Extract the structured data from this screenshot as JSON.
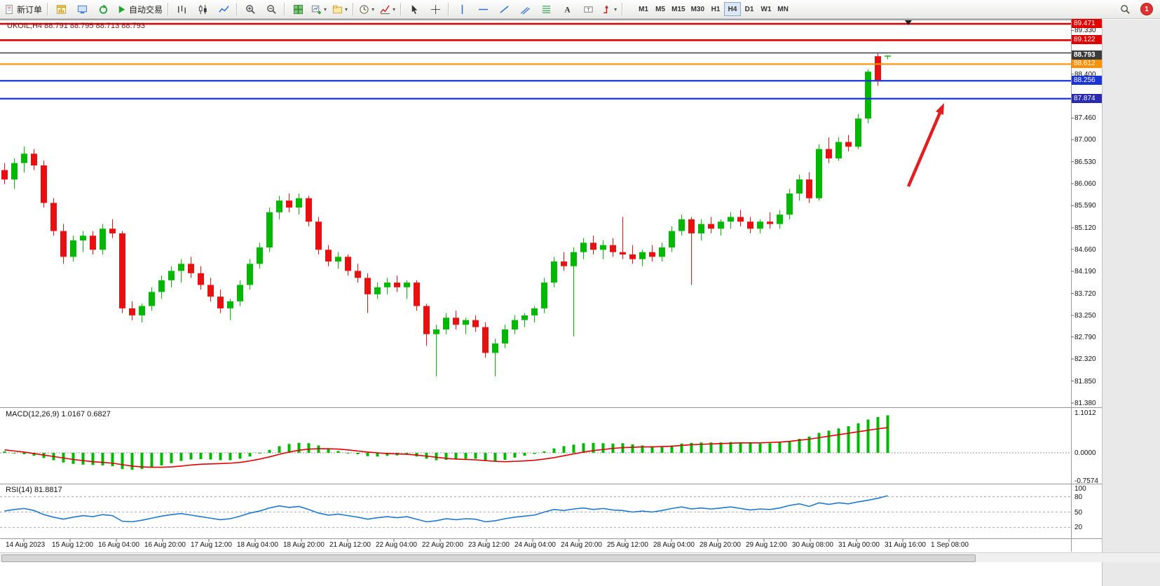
{
  "toolbar": {
    "buttons": [
      {
        "name": "new-order-button",
        "icon": "document",
        "label": "新订单"
      },
      {
        "divider": true
      },
      {
        "name": "charts-window-button",
        "icon": "chart-window"
      },
      {
        "name": "market-watch-button",
        "icon": "monitor"
      },
      {
        "name": "navigator-button",
        "icon": "refresh"
      },
      {
        "name": "auto-trading-button",
        "icon": "play",
        "label": "自动交易"
      },
      {
        "divider": true
      },
      {
        "name": "bar-chart-type-button",
        "icon": "bars"
      },
      {
        "name": "candlestick-chart-type-button",
        "icon": "candles"
      },
      {
        "name": "line-chart-type-button",
        "icon": "line-chart"
      },
      {
        "divider": true
      },
      {
        "name": "zoom-in-button",
        "icon": "zoom-in"
      },
      {
        "name": "zoom-out-button",
        "icon": "zoom-out"
      },
      {
        "divider": true
      },
      {
        "name": "tile-windows-button",
        "icon": "tile"
      },
      {
        "name": "new-chart-button",
        "icon": "new-chart",
        "dropdown": true
      },
      {
        "name": "profiles-button",
        "icon": "profiles",
        "dropdown": true
      },
      {
        "divider": true
      },
      {
        "name": "period-button",
        "icon": "clock",
        "dropdown": true
      },
      {
        "name": "indicators-button",
        "icon": "indicators",
        "dropdown": true
      },
      {
        "divider": true
      },
      {
        "name": "cursor-button",
        "icon": "cursor"
      },
      {
        "name": "crosshair-button",
        "icon": "crosshair"
      },
      {
        "divider": true
      },
      {
        "name": "vertical-line-button",
        "icon": "vline"
      },
      {
        "name": "horizontal-line-button",
        "icon": "hline"
      },
      {
        "name": "trendline-button",
        "icon": "trendline"
      },
      {
        "name": "equidistant-channel-button",
        "icon": "channel"
      },
      {
        "name": "fibonacci-button",
        "icon": "fibo"
      },
      {
        "name": "text-button",
        "icon": "text"
      },
      {
        "name": "text-label-button",
        "icon": "label"
      },
      {
        "name": "arrows-button",
        "icon": "arrows",
        "dropdown": true
      },
      {
        "divider": true
      }
    ],
    "timeframes": [
      "M1",
      "M5",
      "M15",
      "M30",
      "H1",
      "H4",
      "D1",
      "W1",
      "MN"
    ],
    "active_timeframe": "H4",
    "notification_count": "1"
  },
  "chart": {
    "symbol_line": "UKOIL,H4 88.791 88.795 88.713 88.793",
    "colors": {
      "bull": "#00b800",
      "bear": "#e81010",
      "background": "#ffffff",
      "symbol_text": "#6e1515",
      "rsi_line": "#1e78d2",
      "macd_bar": "#00b800",
      "macd_signal": "#e00000"
    },
    "axis_labels": [
      "89.330",
      "88.400",
      "87.460",
      "87.000",
      "86.530",
      "86.060",
      "85.590",
      "85.120",
      "84.660",
      "84.190",
      "83.720",
      "83.250",
      "82.790",
      "82.320",
      "81.850",
      "81.380"
    ],
    "levels": [
      {
        "price": 89.471,
        "color": "#e00000",
        "width": 2.6,
        "badge": {
          "text": "89.471",
          "bg": "#e00000",
          "fg": "#ffffff"
        }
      },
      {
        "price": 89.122,
        "color": "#e00000",
        "width": 2.6,
        "badge": {
          "text": "89.122",
          "bg": "#e00000",
          "fg": "#ffffff"
        }
      },
      {
        "price": 88.85,
        "color": "#3c3c3c",
        "width": 1.5
      },
      {
        "price": 88.612,
        "color": "#ff9000",
        "width": 2.2,
        "badge": {
          "text": "88.612",
          "bg": "#ff9000",
          "fg": "#ffffff"
        }
      },
      {
        "price": 88.256,
        "color": "#1a34d8",
        "width": 2.2,
        "badge": {
          "text": "88.256",
          "bg": "#1a34d8",
          "fg": "#ffffff"
        }
      },
      {
        "price": 87.874,
        "color": "#1a34d8",
        "width": 2.2,
        "badge": {
          "text": "87.874",
          "bg": "#2a2ab0",
          "fg": "#ffffff"
        }
      }
    ],
    "current_price_badge": {
      "text": "88.793",
      "bg": "#3c3c3c",
      "fg": "#ffffff"
    },
    "annotation_arrow": {
      "color": "#e02020",
      "from": [
        1296,
        266
      ],
      "to": [
        1346,
        148
      ]
    }
  },
  "chart_data": [
    {
      "type": "candlestick",
      "title": "UKOIL,H4",
      "symbol": "UKOIL",
      "timeframe": "H4",
      "ohlc_current": {
        "open": 88.791,
        "high": 88.795,
        "low": 88.713,
        "close": 88.793
      },
      "ylim": [
        81.15,
        89.6
      ],
      "x_labels": [
        "14 Aug 2023",
        "15 Aug 12:00",
        "16 Aug 04:00",
        "16 Aug 20:00",
        "17 Aug 12:00",
        "18 Aug 04:00",
        "18 Aug 20:00",
        "21 Aug 12:00",
        "22 Aug 04:00",
        "22 Aug 20:00",
        "23 Aug 12:00",
        "24 Aug 04:00",
        "24 Aug 20:00",
        "25 Aug 12:00",
        "28 Aug 04:00",
        "28 Aug 20:00",
        "29 Aug 12:00",
        "30 Aug 08:00",
        "31 Aug 00:00",
        "31 Aug 16:00",
        "1 Sep 08:00"
      ],
      "candles": [
        [
          86.35,
          86.5,
          86.05,
          86.15
        ],
        [
          86.15,
          86.6,
          85.95,
          86.5
        ],
        [
          86.5,
          86.85,
          86.3,
          86.7
        ],
        [
          86.7,
          86.8,
          86.35,
          86.45
        ],
        [
          86.45,
          86.55,
          85.55,
          85.65
        ],
        [
          85.65,
          85.75,
          84.95,
          85.05
        ],
        [
          85.05,
          85.2,
          84.35,
          84.5
        ],
        [
          84.5,
          84.95,
          84.4,
          84.85
        ],
        [
          84.85,
          85.05,
          84.6,
          84.95
        ],
        [
          84.95,
          85.05,
          84.55,
          84.65
        ],
        [
          84.65,
          85.2,
          84.55,
          85.1
        ],
        [
          85.1,
          85.3,
          84.9,
          85.0
        ],
        [
          85.0,
          85.05,
          83.3,
          83.4
        ],
        [
          83.4,
          83.55,
          83.15,
          83.25
        ],
        [
          83.25,
          83.5,
          83.1,
          83.45
        ],
        [
          83.45,
          83.85,
          83.35,
          83.75
        ],
        [
          83.75,
          84.1,
          83.6,
          84.0
        ],
        [
          84.0,
          84.3,
          83.85,
          84.2
        ],
        [
          84.2,
          84.45,
          83.95,
          84.35
        ],
        [
          84.35,
          84.5,
          84.05,
          84.15
        ],
        [
          84.15,
          84.3,
          83.8,
          83.9
        ],
        [
          83.9,
          84.05,
          83.55,
          83.65
        ],
        [
          83.65,
          83.8,
          83.3,
          83.4
        ],
        [
          83.4,
          83.6,
          83.15,
          83.55
        ],
        [
          83.55,
          84.0,
          83.45,
          83.9
        ],
        [
          83.9,
          84.45,
          83.8,
          84.35
        ],
        [
          84.35,
          84.8,
          84.25,
          84.7
        ],
        [
          84.7,
          85.55,
          84.6,
          85.45
        ],
        [
          85.45,
          85.8,
          85.3,
          85.7
        ],
        [
          85.7,
          85.85,
          85.45,
          85.55
        ],
        [
          85.55,
          85.85,
          85.4,
          85.75
        ],
        [
          85.75,
          85.8,
          85.15,
          85.25
        ],
        [
          85.25,
          85.35,
          84.55,
          84.65
        ],
        [
          84.65,
          84.75,
          84.3,
          84.4
        ],
        [
          84.4,
          84.6,
          84.25,
          84.5
        ],
        [
          84.5,
          84.55,
          84.1,
          84.2
        ],
        [
          84.2,
          84.35,
          83.95,
          84.05
        ],
        [
          84.05,
          84.15,
          83.3,
          83.7
        ],
        [
          83.7,
          83.95,
          83.6,
          83.85
        ],
        [
          83.85,
          84.05,
          83.7,
          83.95
        ],
        [
          83.95,
          84.1,
          83.75,
          83.85
        ],
        [
          83.85,
          84.0,
          83.6,
          83.95
        ],
        [
          83.95,
          84.0,
          83.35,
          83.45
        ],
        [
          83.45,
          83.5,
          82.6,
          82.85
        ],
        [
          82.85,
          83.05,
          81.95,
          82.95
        ],
        [
          82.95,
          83.3,
          82.85,
          83.2
        ],
        [
          83.2,
          83.35,
          82.95,
          83.05
        ],
        [
          83.05,
          83.2,
          82.85,
          83.15
        ],
        [
          83.15,
          83.25,
          82.9,
          83.0
        ],
        [
          83.0,
          83.1,
          82.35,
          82.45
        ],
        [
          82.45,
          82.75,
          81.95,
          82.65
        ],
        [
          82.65,
          83.05,
          82.55,
          82.95
        ],
        [
          82.95,
          83.25,
          82.85,
          83.15
        ],
        [
          83.15,
          83.3,
          83.0,
          83.25
        ],
        [
          83.25,
          83.45,
          83.1,
          83.4
        ],
        [
          83.4,
          84.05,
          83.3,
          83.95
        ],
        [
          83.95,
          84.5,
          83.85,
          84.4
        ],
        [
          84.4,
          84.6,
          84.2,
          84.3
        ],
        [
          84.3,
          84.7,
          82.8,
          84.6
        ],
        [
          84.6,
          84.9,
          84.45,
          84.8
        ],
        [
          84.8,
          84.95,
          84.55,
          84.65
        ],
        [
          84.65,
          84.85,
          84.45,
          84.75
        ],
        [
          84.75,
          84.9,
          84.5,
          84.6
        ],
        [
          84.6,
          85.35,
          84.45,
          84.55
        ],
        [
          84.55,
          84.75,
          84.35,
          84.45
        ],
        [
          84.45,
          84.65,
          84.3,
          84.6
        ],
        [
          84.6,
          84.75,
          84.4,
          84.5
        ],
        [
          84.5,
          84.8,
          84.4,
          84.7
        ],
        [
          84.7,
          85.15,
          84.6,
          85.05
        ],
        [
          85.05,
          85.4,
          84.95,
          85.3
        ],
        [
          85.3,
          85.35,
          83.9,
          85.0
        ],
        [
          85.0,
          85.3,
          84.85,
          85.2
        ],
        [
          85.2,
          85.35,
          85.0,
          85.1
        ],
        [
          85.1,
          85.3,
          84.95,
          85.25
        ],
        [
          85.25,
          85.45,
          85.1,
          85.35
        ],
        [
          85.35,
          85.5,
          85.15,
          85.25
        ],
        [
          85.25,
          85.35,
          85.0,
          85.1
        ],
        [
          85.1,
          85.3,
          85.0,
          85.25
        ],
        [
          85.25,
          85.45,
          85.1,
          85.2
        ],
        [
          85.2,
          85.5,
          85.1,
          85.4
        ],
        [
          85.4,
          85.95,
          85.3,
          85.85
        ],
        [
          85.85,
          86.25,
          85.7,
          86.15
        ],
        [
          86.15,
          86.3,
          85.65,
          85.75
        ],
        [
          85.75,
          86.9,
          85.7,
          86.8
        ],
        [
          86.8,
          87.05,
          86.5,
          86.6
        ],
        [
          86.6,
          87.05,
          86.55,
          86.95
        ],
        [
          86.95,
          87.1,
          86.75,
          86.85
        ],
        [
          86.85,
          87.55,
          86.8,
          87.45
        ],
        [
          87.45,
          88.5,
          87.35,
          88.45
        ],
        [
          88.78,
          88.85,
          88.15,
          88.25
        ],
        [
          88.791,
          88.795,
          88.713,
          88.793
        ]
      ]
    },
    {
      "type": "bar",
      "name": "MACD(12,26,9)",
      "label": "MACD(12,26,9) 1.0167 0.6827",
      "last_value": 1.0167,
      "last_signal": 0.6827,
      "axis_labels": [
        "1.1012",
        "0.0000",
        "-0.7574"
      ],
      "ylim": [
        -0.7574,
        1.1012
      ],
      "values": [
        0.04,
        0.0,
        -0.04,
        -0.08,
        -0.14,
        -0.2,
        -0.26,
        -0.3,
        -0.32,
        -0.33,
        -0.34,
        -0.36,
        -0.44,
        -0.46,
        -0.44,
        -0.4,
        -0.34,
        -0.28,
        -0.22,
        -0.18,
        -0.17,
        -0.18,
        -0.2,
        -0.2,
        -0.16,
        -0.1,
        -0.02,
        0.08,
        0.18,
        0.24,
        0.27,
        0.26,
        0.2,
        0.12,
        0.05,
        0.0,
        -0.04,
        -0.09,
        -0.1,
        -0.08,
        -0.07,
        -0.05,
        -0.1,
        -0.16,
        -0.2,
        -0.19,
        -0.17,
        -0.16,
        -0.16,
        -0.2,
        -0.23,
        -0.19,
        -0.13,
        -0.08,
        -0.03,
        0.04,
        0.12,
        0.18,
        0.22,
        0.26,
        0.27,
        0.26,
        0.25,
        0.26,
        0.23,
        0.2,
        0.18,
        0.17,
        0.2,
        0.25,
        0.27,
        0.28,
        0.28,
        0.28,
        0.29,
        0.28,
        0.26,
        0.25,
        0.26,
        0.28,
        0.32,
        0.38,
        0.44,
        0.54,
        0.6,
        0.66,
        0.72,
        0.8,
        0.9,
        0.97,
        1.0167
      ],
      "signal": {
        "name": "signal",
        "values": [
          0.08,
          0.05,
          0.02,
          -0.02,
          -0.06,
          -0.1,
          -0.14,
          -0.18,
          -0.21,
          -0.24,
          -0.26,
          -0.28,
          -0.32,
          -0.36,
          -0.38,
          -0.39,
          -0.39,
          -0.38,
          -0.36,
          -0.33,
          -0.31,
          -0.3,
          -0.29,
          -0.28,
          -0.26,
          -0.22,
          -0.17,
          -0.11,
          -0.04,
          0.02,
          0.07,
          0.1,
          0.11,
          0.11,
          0.1,
          0.08,
          0.05,
          0.02,
          0.0,
          -0.02,
          -0.03,
          -0.04,
          -0.06,
          -0.09,
          -0.12,
          -0.15,
          -0.17,
          -0.18,
          -0.19,
          -0.21,
          -0.23,
          -0.24,
          -0.23,
          -0.22,
          -0.2,
          -0.17,
          -0.13,
          -0.08,
          -0.03,
          0.02,
          0.06,
          0.09,
          0.12,
          0.14,
          0.15,
          0.16,
          0.16,
          0.17,
          0.18,
          0.2,
          0.22,
          0.23,
          0.24,
          0.25,
          0.26,
          0.27,
          0.27,
          0.27,
          0.28,
          0.29,
          0.31,
          0.34,
          0.37,
          0.41,
          0.45,
          0.49,
          0.53,
          0.57,
          0.61,
          0.65,
          0.6827
        ]
      }
    },
    {
      "type": "line",
      "name": "RSI(14)",
      "label": "RSI(14) 81.8817",
      "last_value": 81.8817,
      "levels": [
        80,
        50,
        20
      ],
      "axis_labels": [
        "100",
        "80",
        "50",
        "20"
      ],
      "ylim": [
        0,
        100
      ],
      "values": [
        52,
        55,
        57,
        53,
        45,
        40,
        36,
        40,
        43,
        41,
        45,
        43,
        32,
        31,
        34,
        38,
        42,
        45,
        47,
        44,
        41,
        38,
        35,
        37,
        42,
        48,
        52,
        58,
        62,
        59,
        61,
        55,
        48,
        44,
        46,
        43,
        40,
        36,
        39,
        41,
        39,
        41,
        36,
        31,
        33,
        37,
        35,
        37,
        36,
        31,
        33,
        37,
        40,
        42,
        44,
        50,
        55,
        53,
        56,
        58,
        55,
        57,
        54,
        53,
        50,
        52,
        50,
        53,
        57,
        60,
        56,
        58,
        56,
        58,
        60,
        57,
        54,
        56,
        55,
        58,
        63,
        66,
        61,
        68,
        65,
        68,
        66,
        70,
        73,
        77,
        81.88
      ]
    }
  ]
}
